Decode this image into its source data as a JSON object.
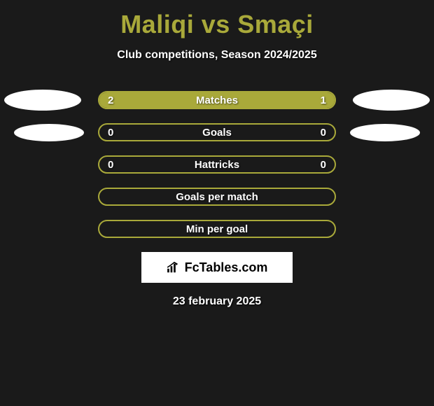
{
  "colors": {
    "background": "#1a1a1a",
    "accent": "#a9a93a",
    "text_light": "#ffffff",
    "text_dark": "#000000",
    "avatar_bg": "#ffffff"
  },
  "title": "Maliqi vs Smaçi",
  "subtitle": "Club competitions, Season 2024/2025",
  "stats": [
    {
      "label": "Matches",
      "left_value": "2",
      "right_value": "1",
      "left_pct": 66.7,
      "right_pct": 33.3,
      "show_left_avatar": true,
      "show_right_avatar": true,
      "avatar_size": "large"
    },
    {
      "label": "Goals",
      "left_value": "0",
      "right_value": "0",
      "left_pct": 0,
      "right_pct": 0,
      "show_left_avatar": true,
      "show_right_avatar": true,
      "avatar_size": "small"
    },
    {
      "label": "Hattricks",
      "left_value": "0",
      "right_value": "0",
      "left_pct": 0,
      "right_pct": 0,
      "show_left_avatar": false,
      "show_right_avatar": false
    },
    {
      "label": "Goals per match",
      "left_value": "",
      "right_value": "",
      "left_pct": 0,
      "right_pct": 0,
      "show_left_avatar": false,
      "show_right_avatar": false
    },
    {
      "label": "Min per goal",
      "left_value": "",
      "right_value": "",
      "left_pct": 0,
      "right_pct": 0,
      "show_left_avatar": false,
      "show_right_avatar": false
    }
  ],
  "branding": {
    "text": "FcTables.com"
  },
  "date": "23 february 2025"
}
